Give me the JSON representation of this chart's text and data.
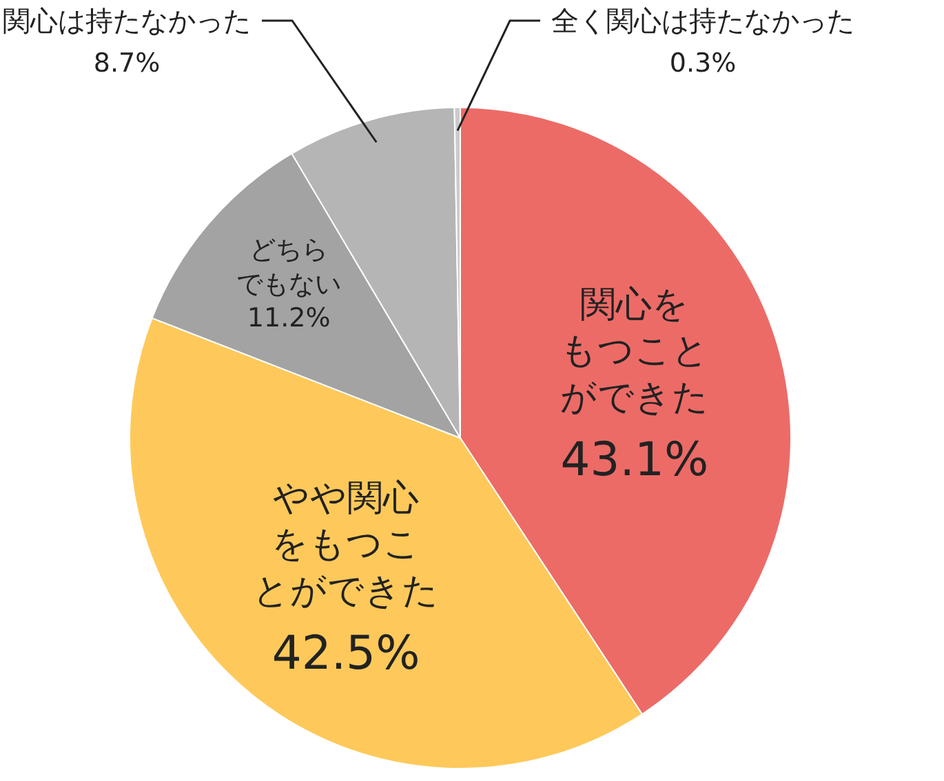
{
  "chart_data": {
    "type": "pie",
    "categories": [
      "関心をもつことができた",
      "やや関心をもつことができた",
      "どちらでもない",
      "関心は持たなかった",
      "全く関心は持たなかった"
    ],
    "values": [
      43.1,
      42.5,
      11.2,
      8.7,
      0.3
    ],
    "value_labels": [
      "43.1%",
      "42.5%",
      "11.2%",
      "8.7%",
      "0.3%"
    ],
    "colors": [
      "#ec6b67",
      "#fec95a",
      "#a3a3a3",
      "#b5b5b5",
      "#cbcbcb"
    ]
  }
}
